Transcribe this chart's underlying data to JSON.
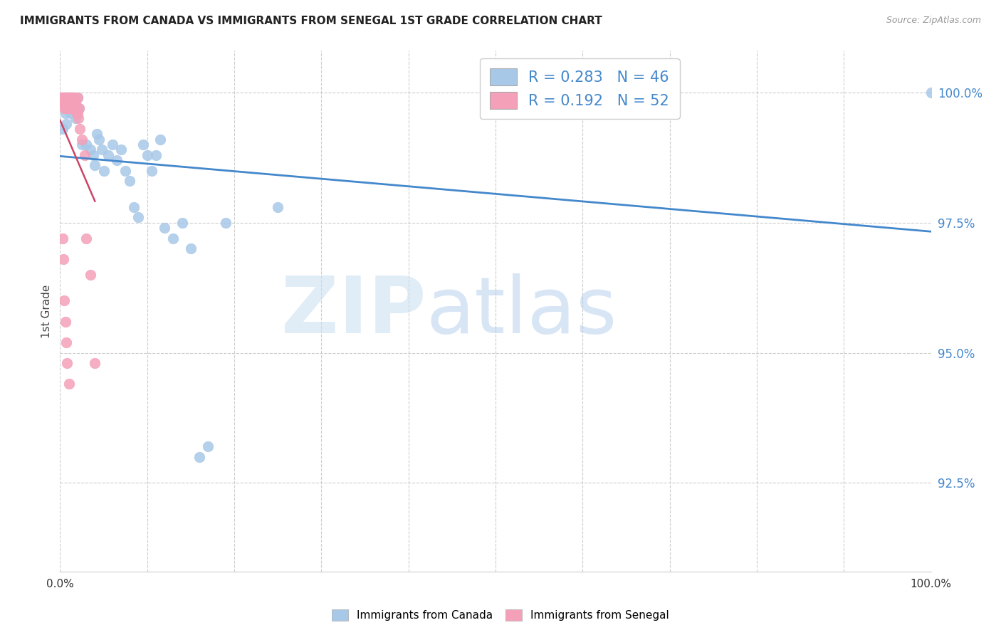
{
  "title": "IMMIGRANTS FROM CANADA VS IMMIGRANTS FROM SENEGAL 1ST GRADE CORRELATION CHART",
  "source": "Source: ZipAtlas.com",
  "ylabel": "1st Grade",
  "R_canada": 0.283,
  "N_canada": 46,
  "R_senegal": 0.192,
  "N_senegal": 52,
  "canada_color": "#a8c8e8",
  "senegal_color": "#f4a0b8",
  "canada_line_color": "#4488cc",
  "senegal_line_color": "#cc4466",
  "legend_text_color": "#4488cc",
  "ytick_labels": [
    "92.5%",
    "95.0%",
    "97.5%",
    "100.0%"
  ],
  "ytick_values": [
    0.925,
    0.95,
    0.975,
    1.0
  ],
  "xlim": [
    0.0,
    1.0
  ],
  "ylim": [
    0.908,
    1.008
  ],
  "canada_x": [
    0.003,
    0.005,
    0.006,
    0.007,
    0.008,
    0.009,
    0.01,
    0.011,
    0.012,
    0.013,
    0.015,
    0.016,
    0.018,
    0.02,
    0.022,
    0.025,
    0.03,
    0.035,
    0.038,
    0.04,
    0.042,
    0.045,
    0.048,
    0.05,
    0.055,
    0.06,
    0.065,
    0.07,
    0.075,
    0.08,
    0.085,
    0.09,
    0.095,
    0.1,
    0.105,
    0.11,
    0.115,
    0.12,
    0.13,
    0.14,
    0.15,
    0.16,
    0.17,
    0.19,
    0.25,
    1.0
  ],
  "canada_y": [
    0.993,
    0.998,
    0.996,
    0.994,
    0.999,
    0.997,
    0.999,
    0.998,
    0.996,
    0.999,
    0.999,
    0.997,
    0.995,
    0.999,
    0.997,
    0.99,
    0.99,
    0.989,
    0.988,
    0.986,
    0.992,
    0.991,
    0.989,
    0.985,
    0.988,
    0.99,
    0.987,
    0.989,
    0.985,
    0.983,
    0.978,
    0.976,
    0.99,
    0.988,
    0.985,
    0.988,
    0.991,
    0.974,
    0.972,
    0.975,
    0.97,
    0.93,
    0.932,
    0.975,
    0.978,
    1.0
  ],
  "senegal_x": [
    0.001,
    0.002,
    0.002,
    0.003,
    0.003,
    0.004,
    0.004,
    0.005,
    0.005,
    0.005,
    0.006,
    0.006,
    0.007,
    0.007,
    0.007,
    0.008,
    0.008,
    0.009,
    0.009,
    0.01,
    0.01,
    0.01,
    0.011,
    0.011,
    0.012,
    0.012,
    0.013,
    0.013,
    0.014,
    0.015,
    0.015,
    0.016,
    0.017,
    0.018,
    0.019,
    0.02,
    0.02,
    0.021,
    0.022,
    0.023,
    0.025,
    0.028,
    0.03,
    0.035,
    0.04,
    0.003,
    0.004,
    0.005,
    0.006,
    0.007,
    0.008,
    0.01
  ],
  "senegal_y": [
    0.999,
    0.999,
    0.998,
    0.999,
    0.998,
    0.999,
    0.998,
    0.999,
    0.998,
    0.997,
    0.999,
    0.998,
    0.999,
    0.998,
    0.997,
    0.999,
    0.998,
    0.999,
    0.997,
    0.999,
    0.998,
    0.997,
    0.999,
    0.997,
    0.999,
    0.998,
    0.999,
    0.997,
    0.999,
    0.999,
    0.997,
    0.999,
    0.997,
    0.998,
    0.996,
    0.999,
    0.996,
    0.995,
    0.997,
    0.993,
    0.991,
    0.988,
    0.972,
    0.965,
    0.948,
    0.972,
    0.968,
    0.96,
    0.956,
    0.952,
    0.948,
    0.944
  ],
  "xtick_positions": [
    0.0,
    0.1,
    0.2,
    0.3,
    0.4,
    0.5,
    0.6,
    0.7,
    0.8,
    0.9,
    1.0
  ],
  "xtick_labels": [
    "0.0%",
    "",
    "",
    "",
    "",
    "",
    "",
    "",
    "",
    "",
    "100.0%"
  ]
}
